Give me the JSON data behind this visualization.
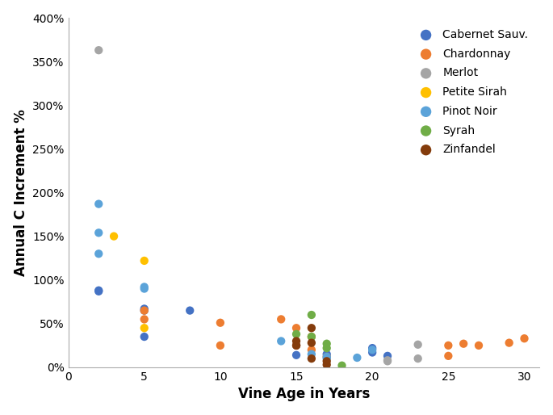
{
  "series": {
    "Cabernet Sauv.": {
      "color": "#4472C4",
      "x": [
        2,
        2,
        5,
        5,
        5,
        8,
        15,
        15,
        17,
        20,
        20,
        21
      ],
      "y": [
        88,
        87,
        65,
        67,
        35,
        65,
        25,
        14,
        15,
        22,
        17,
        13
      ]
    },
    "Chardonnay": {
      "color": "#ED7D31",
      "x": [
        5,
        5,
        10,
        10,
        14,
        15,
        15,
        16,
        16,
        17,
        25,
        25,
        26,
        27,
        29,
        30
      ],
      "y": [
        65,
        55,
        51,
        25,
        55,
        45,
        25,
        35,
        20,
        12,
        13,
        25,
        27,
        25,
        28,
        33
      ]
    },
    "Merlot": {
      "color": "#A5A5A5",
      "x": [
        2,
        21,
        21,
        23,
        23
      ],
      "y": [
        363,
        8,
        7,
        26,
        10
      ]
    },
    "Petite Sirah": {
      "color": "#FFC000",
      "x": [
        3,
        5,
        5
      ],
      "y": [
        150,
        122,
        45
      ]
    },
    "Pinot Noir": {
      "color": "#5BA3D9",
      "x": [
        2,
        2,
        2,
        5,
        5,
        14,
        16,
        17,
        17,
        19,
        20
      ],
      "y": [
        187,
        154,
        130,
        92,
        90,
        30,
        15,
        12,
        10,
        11,
        20
      ]
    },
    "Syrah": {
      "color": "#70AD47",
      "x": [
        15,
        16,
        16,
        17,
        17,
        18
      ],
      "y": [
        38,
        60,
        35,
        27,
        22,
        2
      ]
    },
    "Zinfandel": {
      "color": "#843C0C",
      "x": [
        15,
        15,
        16,
        16,
        16,
        17,
        17
      ],
      "y": [
        30,
        25,
        45,
        28,
        10,
        7,
        3
      ]
    }
  },
  "xlabel": "Vine Age in Years",
  "ylabel": "Annual C Increment %",
  "xlim": [
    0,
    31
  ],
  "ylim": [
    0,
    400
  ],
  "xticks": [
    0,
    5,
    10,
    15,
    20,
    25,
    30
  ],
  "yticks": [
    0,
    50,
    100,
    150,
    200,
    250,
    300,
    350,
    400
  ],
  "ytick_labels": [
    "0%",
    "50%",
    "100%",
    "150%",
    "200%",
    "250%",
    "300%",
    "350%",
    "400%"
  ],
  "marker_size": 55,
  "legend_fontsize": 10,
  "axis_label_fontsize": 12
}
